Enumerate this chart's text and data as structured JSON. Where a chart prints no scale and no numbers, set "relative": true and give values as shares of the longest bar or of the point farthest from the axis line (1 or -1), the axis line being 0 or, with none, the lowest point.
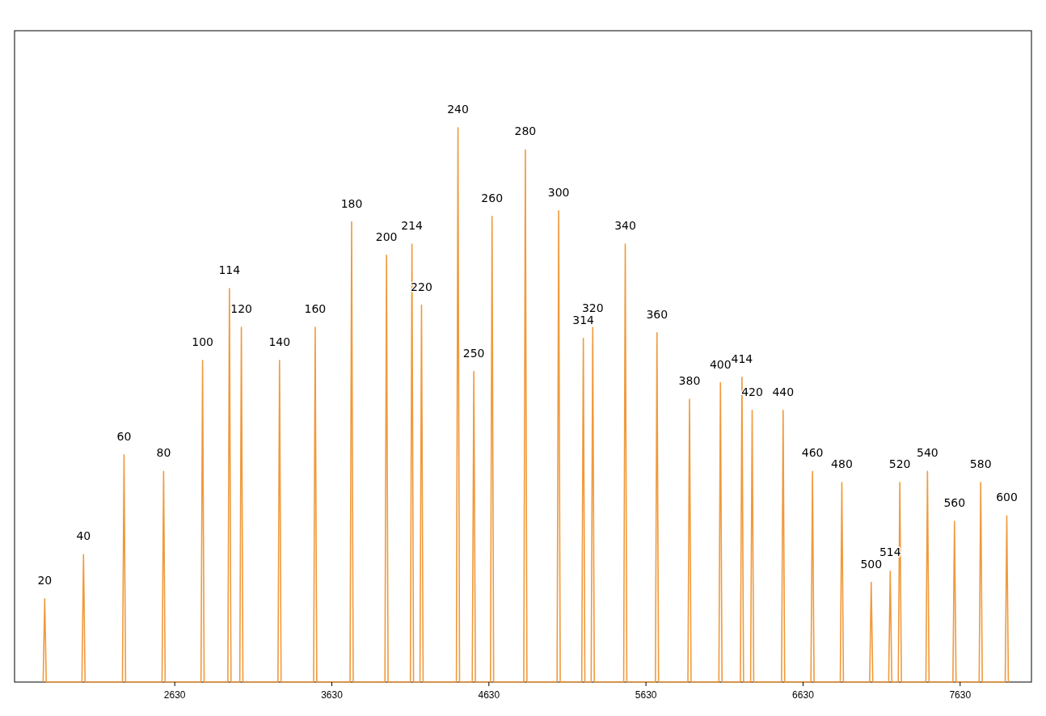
{
  "chart_data": {
    "type": "line",
    "relative": true,
    "tick_labels": "x",
    "grid": false,
    "marker": "none",
    "line_style": "solid",
    "xlim": [
      1610,
      8084
    ],
    "xticks": [
      2630,
      3630,
      4630,
      5630,
      6630,
      7630
    ],
    "series": [
      {
        "color": "#f09a3c",
        "x": [
          1792,
          1802,
          1812,
          2039,
          2049,
          2059,
          2297,
          2307,
          2317,
          2549,
          2559,
          2569,
          2797,
          2807,
          2817,
          2968,
          2978,
          2988,
          3044,
          3054,
          3064,
          3287,
          3297,
          3307,
          3514,
          3524,
          3534,
          3746,
          3756,
          3766,
          3968,
          3978,
          3988,
          4130,
          4140,
          4150,
          4191,
          4201,
          4211,
          4423,
          4433,
          4443,
          4524,
          4534,
          4544,
          4640,
          4650,
          4660,
          4852,
          4862,
          4872,
          5064,
          5074,
          5084,
          5221,
          5231,
          5241,
          5281,
          5291,
          5301,
          5488,
          5498,
          5508,
          5690,
          5700,
          5710,
          5897,
          5907,
          5917,
          6094,
          6104,
          6114,
          6231,
          6241,
          6251,
          6296,
          6306,
          6316,
          6493,
          6503,
          6513,
          6680,
          6690,
          6700,
          6867,
          6877,
          6887,
          7054,
          7064,
          7074,
          7175,
          7185,
          7195,
          7236,
          7246,
          7256,
          7412,
          7422,
          7432,
          7584,
          7594,
          7604,
          7751,
          7761,
          7771,
          7917,
          7927,
          7937
        ],
        "values": [
          0,
          0.15,
          0,
          0,
          0.23,
          0,
          0,
          0.41,
          0,
          0,
          0.38,
          0,
          0,
          0.58,
          0,
          0,
          0.71,
          0,
          0,
          0.64,
          0,
          0,
          0.58,
          0,
          0,
          0.64,
          0,
          0,
          0.83,
          0,
          0,
          0.77,
          0,
          0,
          0.79,
          0,
          0,
          0.68,
          0,
          0,
          1,
          0,
          0,
          0.56,
          0,
          0,
          0.84,
          0,
          0,
          0.96,
          0,
          0,
          0.85,
          0,
          0,
          0.62,
          0,
          0,
          0.64,
          0,
          0,
          0.79,
          0,
          0,
          0.63,
          0,
          0,
          0.51,
          0,
          0,
          0.54,
          0,
          0,
          0.55,
          0,
          0,
          0.49,
          0,
          0,
          0.49,
          0,
          0,
          0.38,
          0,
          0,
          0.36,
          0,
          0,
          0.18,
          0,
          0,
          0.2,
          0,
          0,
          0.36,
          0,
          0,
          0.38,
          0,
          0,
          0.29,
          0,
          0,
          0.36,
          0,
          0,
          0.3,
          0
        ]
      }
    ],
    "annotations": [
      {
        "text": "20",
        "x": 1802,
        "y": 0.15
      },
      {
        "text": "40",
        "x": 2049,
        "y": 0.23
      },
      {
        "text": "60",
        "x": 2307,
        "y": 0.41
      },
      {
        "text": "80",
        "x": 2559,
        "y": 0.38
      },
      {
        "text": "100",
        "x": 2807,
        "y": 0.58
      },
      {
        "text": "114",
        "x": 2978,
        "y": 0.71
      },
      {
        "text": "120",
        "x": 3054,
        "y": 0.64
      },
      {
        "text": "140",
        "x": 3297,
        "y": 0.58
      },
      {
        "text": "160",
        "x": 3524,
        "y": 0.64
      },
      {
        "text": "180",
        "x": 3756,
        "y": 0.83
      },
      {
        "text": "200",
        "x": 3978,
        "y": 0.77
      },
      {
        "text": "214",
        "x": 4140,
        "y": 0.79
      },
      {
        "text": "220",
        "x": 4201,
        "y": 0.68
      },
      {
        "text": "240",
        "x": 4433,
        "y": 1
      },
      {
        "text": "250",
        "x": 4534,
        "y": 0.56
      },
      {
        "text": "260",
        "x": 4650,
        "y": 0.84
      },
      {
        "text": "280",
        "x": 4862,
        "y": 0.96
      },
      {
        "text": "300",
        "x": 5074,
        "y": 0.85
      },
      {
        "text": "314",
        "x": 5231,
        "y": 0.62
      },
      {
        "text": "320",
        "x": 5291,
        "y": 0.64
      },
      {
        "text": "340",
        "x": 5498,
        "y": 0.79
      },
      {
        "text": "360",
        "x": 5700,
        "y": 0.63
      },
      {
        "text": "380",
        "x": 5907,
        "y": 0.51
      },
      {
        "text": "400",
        "x": 6104,
        "y": 0.54
      },
      {
        "text": "414",
        "x": 6241,
        "y": 0.55
      },
      {
        "text": "420",
        "x": 6306,
        "y": 0.49
      },
      {
        "text": "440",
        "x": 6503,
        "y": 0.49
      },
      {
        "text": "460",
        "x": 6690,
        "y": 0.38
      },
      {
        "text": "480",
        "x": 6877,
        "y": 0.36
      },
      {
        "text": "500",
        "x": 7064,
        "y": 0.18
      },
      {
        "text": "514",
        "x": 7185,
        "y": 0.2
      },
      {
        "text": "520",
        "x": 7246,
        "y": 0.36
      },
      {
        "text": "540",
        "x": 7422,
        "y": 0.38
      },
      {
        "text": "560",
        "x": 7594,
        "y": 0.29
      },
      {
        "text": "580",
        "x": 7761,
        "y": 0.36
      },
      {
        "text": "600",
        "x": 7927,
        "y": 0.3
      }
    ]
  }
}
